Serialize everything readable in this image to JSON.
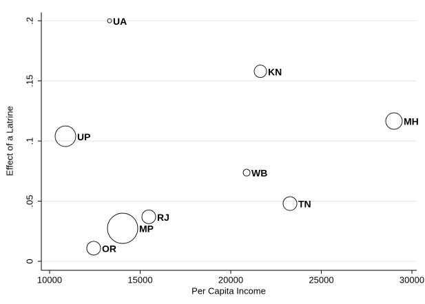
{
  "chart_data": {
    "type": "scatter",
    "x_label": "Per Capita Income",
    "y_label": "Effect of a Latrine",
    "labels": [
      "UA",
      "KN",
      "MH",
      "UP",
      "WB",
      "TN",
      "RJ",
      "MP",
      "OR"
    ],
    "x": [
      13308,
      21635,
      29011,
      10875,
      20875,
      23270,
      15475,
      14030,
      12433
    ],
    "y": [
      0.2,
      0.158,
      0.1166,
      0.104,
      0.0737,
      0.048,
      0.037,
      0.0274,
      0.0109
    ],
    "sizes": [
      9,
      81,
      144,
      225,
      25,
      100,
      100,
      484,
      100
    ],
    "xlim": [
      9544,
      30266
    ],
    "ylim": [
      -0.0075,
      0.207
    ],
    "xticks": [
      10000,
      15000,
      20000,
      25000,
      30000
    ],
    "yticks": [
      0,
      {
        "value": 0.05,
        "label": ".05"
      },
      {
        "value": 0.1,
        "label": ".1"
      },
      {
        "value": 0.15,
        "label": ".15"
      },
      {
        "value": 0.2,
        "label": ".2"
      }
    ],
    "grid": true,
    "color": "#1a1a1a"
  }
}
